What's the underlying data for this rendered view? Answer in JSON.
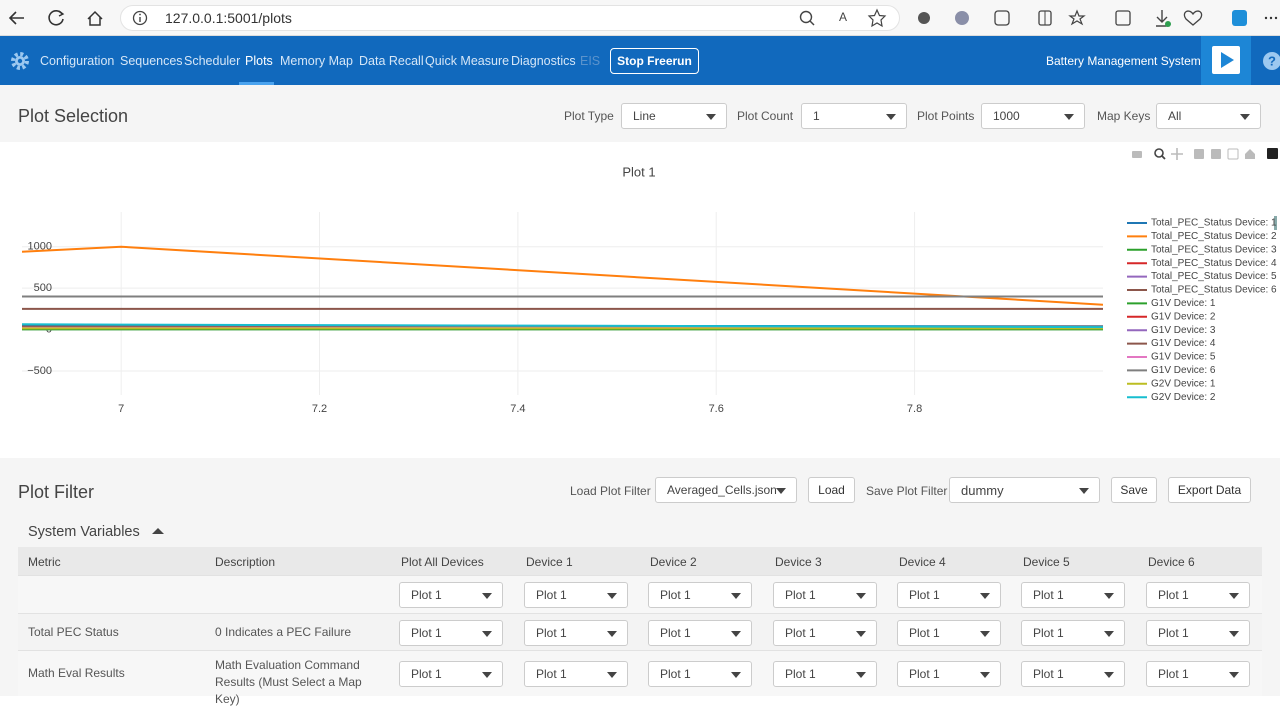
{
  "browser": {
    "url": "127.0.0.1:5001/plots"
  },
  "nav": {
    "items": [
      "Configuration",
      "Sequences",
      "Scheduler",
      "Plots",
      "Memory Map",
      "Data Recall",
      "Quick Measure",
      "Diagnostics",
      "EIS"
    ],
    "button": "Stop Freerun",
    "app_title": "Battery Management System"
  },
  "plot_selection": {
    "title": "Plot Selection",
    "controls": [
      {
        "label": "Plot Type",
        "value": "Line"
      },
      {
        "label": "Plot Count",
        "value": "1"
      },
      {
        "label": "Plot Points",
        "value": "1000"
      },
      {
        "label": "Map Keys",
        "value": "All"
      }
    ]
  },
  "chart_data": {
    "type": "line",
    "title": "Plot 1",
    "x": [
      6.9,
      7,
      7.99
    ],
    "xlim": [
      6.9,
      7.99
    ],
    "xticks": [
      7,
      7.2,
      7.4,
      7.6,
      7.8
    ],
    "ylim": [
      -790,
      1420
    ],
    "yticks": [
      {
        "value": -500,
        "label": "−500"
      },
      0,
      500,
      1000
    ],
    "grid": true,
    "series": [
      {
        "name": "Total_PEC_Status Device: 1",
        "color": "#1f77b4",
        "values": [
          50,
          48,
          40
        ]
      },
      {
        "name": "Total_PEC_Status Device: 2",
        "color": "#ff7f0e",
        "values": [
          940,
          1000,
          300
        ]
      },
      {
        "name": "Total_PEC_Status Device: 3",
        "color": "#2ca02c",
        "values": [
          20,
          18,
          15
        ]
      },
      {
        "name": "Total_PEC_Status Device: 4",
        "color": "#d62728",
        "values": [
          10,
          10,
          10
        ]
      },
      {
        "name": "Total_PEC_Status Device: 5",
        "color": "#9467bd",
        "values": [
          5,
          5,
          5
        ]
      },
      {
        "name": "Total_PEC_Status Device: 6",
        "color": "#8c564b",
        "values": [
          250,
          250,
          250
        ]
      },
      {
        "name": "G1V Device: 1",
        "color": "#2ca02c",
        "values": [
          3,
          3,
          3
        ]
      },
      {
        "name": "G1V Device: 2",
        "color": "#d62728",
        "values": [
          25,
          25,
          25
        ]
      },
      {
        "name": "G1V Device: 3",
        "color": "#9467bd",
        "values": [
          30,
          30,
          30
        ]
      },
      {
        "name": "G1V Device: 4",
        "color": "#8c564b",
        "values": [
          35,
          35,
          35
        ]
      },
      {
        "name": "G1V Device: 5",
        "color": "#e377c2",
        "values": [
          20,
          20,
          20
        ]
      },
      {
        "name": "G1V Device: 6",
        "color": "#7f7f7f",
        "values": [
          400,
          400,
          400
        ]
      },
      {
        "name": "G2V Device: 1",
        "color": "#bcbd22",
        "values": [
          15,
          15,
          15
        ]
      },
      {
        "name": "G2V Device: 2",
        "color": "#17becf",
        "values": [
          65,
          60,
          30
        ]
      }
    ]
  },
  "plot_filter": {
    "title": "Plot Filter",
    "load_label": "Load Plot Filter",
    "load_value": "Averaged_Cells.json",
    "load_button": "Load",
    "save_label": "Save Plot Filter",
    "save_value": "dummy",
    "save_button": "Save",
    "export_button": "Export Data",
    "group": "System Variables",
    "table": {
      "columns": [
        "Metric",
        "Description",
        "Plot All Devices",
        "Device 1",
        "Device 2",
        "Device 3",
        "Device 4",
        "Device 5",
        "Device 6"
      ],
      "rows": [
        {
          "selections": [
            "Plot 1",
            "Plot 1",
            "Plot 1",
            "Plot 1",
            "Plot 1",
            "Plot 1",
            "Plot 1"
          ]
        },
        {
          "metric": "Total PEC Status",
          "description": "0 Indicates a PEC Failure",
          "selections": [
            "Plot 1",
            "Plot 1",
            "Plot 1",
            "Plot 1",
            "Plot 1",
            "Plot 1",
            "Plot 1"
          ]
        },
        {
          "metric": "Math Eval Results",
          "description": "Math Evaluation Command Results (Must Select a Map Key)",
          "selections": [
            "Plot 1",
            "Plot 1",
            "Plot 1",
            "Plot 1",
            "Plot 1",
            "Plot 1",
            "Plot 1"
          ]
        }
      ]
    }
  }
}
